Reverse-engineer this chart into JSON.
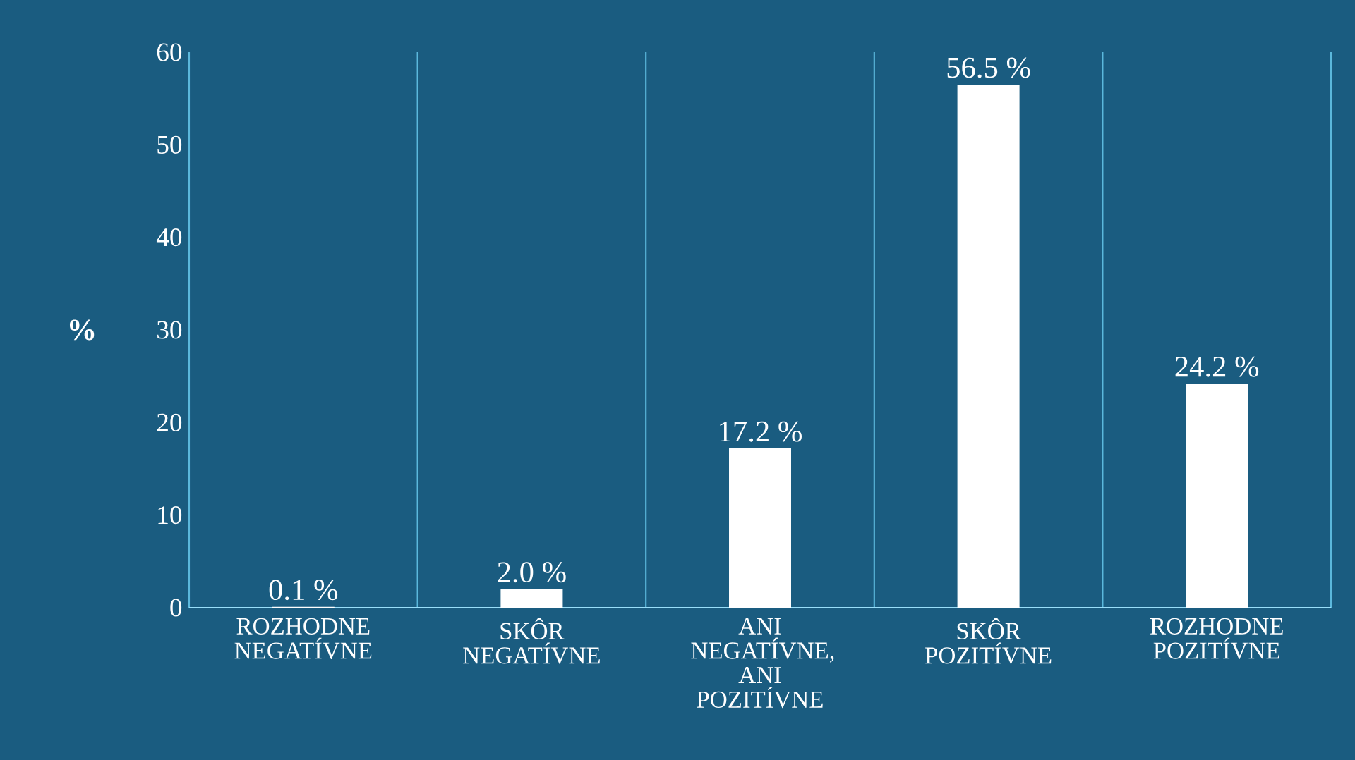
{
  "chart_data": {
    "type": "bar",
    "ylabel": "%",
    "categories": [
      "ROZHODNE NEGATÍVNE",
      "SKÔR NEGATÍVNE",
      "ANI NEGATÍVNE, ANI POZITÍVNE",
      "SKÔR POZITÍVNE",
      "ROZHODNE POZITÍVNE"
    ],
    "values": [
      0.1,
      2.0,
      17.2,
      56.5,
      24.2
    ],
    "value_labels": [
      "0.1 %",
      "2.0 %",
      "17.2 %",
      "56.5 %",
      "24.2 %"
    ],
    "color": "#ffffff",
    "ylim": [
      0,
      60
    ],
    "yticks": [
      0,
      10,
      20,
      30,
      40,
      50,
      60
    ],
    "grid": "x"
  }
}
